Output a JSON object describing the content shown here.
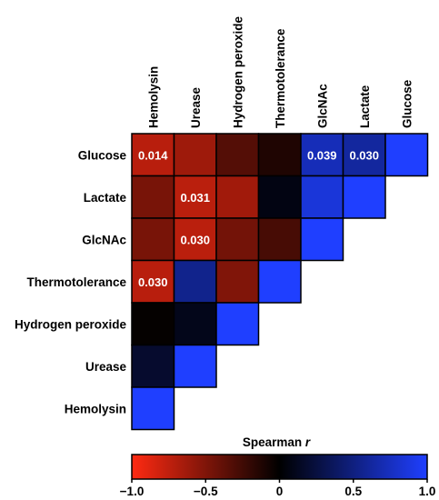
{
  "chart_data": {
    "type": "heatmap",
    "layout": "lower-triangle",
    "row_labels": [
      "Glucose",
      "Lactate",
      "GlcNAc",
      "Thermotolerance",
      "Hydrogen peroxide",
      "Urease",
      "Hemolysin"
    ],
    "col_labels": [
      "Hemolysin",
      "Urease",
      "Hydrogen peroxide",
      "Thermotolerance",
      "GlcNAc",
      "Lactate",
      "Glucose"
    ],
    "values": [
      [
        -0.72,
        -0.62,
        -0.33,
        -0.12,
        0.72,
        0.62,
        1.0
      ],
      [
        -0.47,
        -0.73,
        -0.63,
        0.07,
        0.85,
        1.0,
        null
      ],
      [
        -0.47,
        -0.73,
        -0.45,
        -0.28,
        1.0,
        null,
        null
      ],
      [
        -0.72,
        0.55,
        -0.5,
        1.0,
        null,
        null,
        null
      ],
      [
        -0.02,
        0.1,
        1.0,
        null,
        null,
        null,
        null
      ],
      [
        0.18,
        1.0,
        null,
        null,
        null,
        null,
        null
      ],
      [
        1.0,
        null,
        null,
        null,
        null,
        null,
        null
      ]
    ],
    "cell_labels": [
      {
        "row": 0,
        "col": 0,
        "text": "0.014"
      },
      {
        "row": 0,
        "col": 4,
        "text": "0.039"
      },
      {
        "row": 0,
        "col": 5,
        "text": "0.030"
      },
      {
        "row": 1,
        "col": 1,
        "text": "0.031"
      },
      {
        "row": 2,
        "col": 1,
        "text": "0.030"
      },
      {
        "row": 3,
        "col": 0,
        "text": "0.030"
      }
    ],
    "colorbar": {
      "title": "Spearman ",
      "title_italic": "r",
      "range": [
        -1.0,
        1.0
      ],
      "ticks": [
        "−1.0",
        "−0.5",
        "0",
        "0.5",
        "1.0"
      ],
      "tick_values": [
        -1.0,
        -0.5,
        0,
        0.5,
        1.0
      ],
      "colors": {
        "negative": "#ff2a12",
        "zero": "#000000",
        "positive": "#1f3fff"
      }
    },
    "grid": false,
    "legend": "colorbar-bottom"
  }
}
